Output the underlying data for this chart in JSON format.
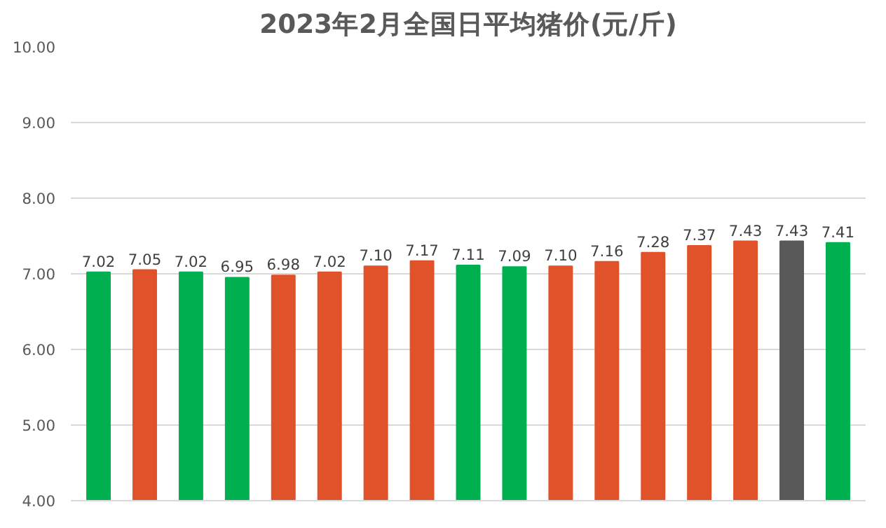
{
  "chart_data": {
    "type": "bar",
    "title": "2023年2月全国日平均猪价(元/斤)",
    "categories": [
      null,
      null,
      null,
      null,
      null,
      null,
      null,
      null,
      null,
      null,
      null,
      null,
      null,
      null,
      null,
      null,
      null
    ],
    "values": [
      7.02,
      7.05,
      7.02,
      6.95,
      6.98,
      7.02,
      7.1,
      7.17,
      7.11,
      7.09,
      7.1,
      7.16,
      7.28,
      7.37,
      7.43,
      7.43,
      7.41
    ],
    "colors": [
      "#00b050",
      "#e0522a",
      "#00b050",
      "#00b050",
      "#e0522a",
      "#e0522a",
      "#e0522a",
      "#e0522a",
      "#00b050",
      "#00b050",
      "#e0522a",
      "#e0522a",
      "#e0522a",
      "#e0522a",
      "#e0522a",
      "#595959",
      "#00b050"
    ],
    "value_labels": [
      "7.02",
      "7.05",
      "7.02",
      "6.95",
      "6.98",
      "7.02",
      "7.10",
      "7.17",
      "7.11",
      "7.09",
      "7.10",
      "7.16",
      "7.28",
      "7.37",
      "7.43",
      "7.43",
      "7.41"
    ],
    "ylim": [
      4,
      10
    ],
    "yticks": [
      {
        "value": 4,
        "label": "4.00"
      },
      {
        "value": 5,
        "label": "5.00"
      },
      {
        "value": 6,
        "label": "6.00"
      },
      {
        "value": 7,
        "label": "7.00"
      },
      {
        "value": 8,
        "label": "8.00"
      },
      {
        "value": 9,
        "label": "9.00"
      },
      {
        "value": 10,
        "label": "10.00"
      }
    ],
    "grid": "y",
    "tick_labels": "y"
  }
}
